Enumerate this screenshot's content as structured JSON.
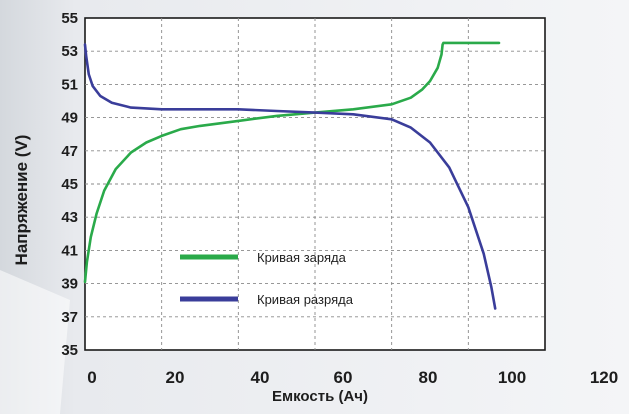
{
  "chart_data": {
    "type": "line",
    "title": "",
    "xlabel": "Емкость (Ач)",
    "ylabel": "Напряжение (V)",
    "xlim": [
      0,
      120
    ],
    "ylim": [
      35,
      55
    ],
    "x_ticks": [
      0,
      20,
      40,
      60,
      80,
      100,
      120
    ],
    "y_ticks": [
      35,
      37,
      39,
      41,
      43,
      45,
      47,
      49,
      51,
      53,
      55
    ],
    "grid": true,
    "legend_position": "center-left",
    "series": [
      {
        "name": "Кривая заряда",
        "color": "#2aaa4a",
        "x": [
          0,
          0.5,
          1.5,
          3,
          5,
          8,
          12,
          16,
          20,
          25,
          30,
          40,
          50,
          60,
          70,
          80,
          85,
          88,
          90,
          92,
          93,
          93.3,
          93.5,
          95,
          100,
          108
        ],
        "y": [
          39.1,
          40.3,
          41.8,
          43.2,
          44.6,
          45.9,
          46.9,
          47.5,
          47.9,
          48.3,
          48.5,
          48.8,
          49.1,
          49.3,
          49.5,
          49.8,
          50.2,
          50.7,
          51.2,
          52.0,
          52.8,
          53.4,
          53.5,
          53.5,
          53.5,
          53.5
        ]
      },
      {
        "name": "Кривая разряда",
        "color": "#3a3d9a",
        "x": [
          0,
          0.3,
          1,
          2,
          4,
          7,
          12,
          20,
          30,
          40,
          50,
          60,
          70,
          80,
          85,
          90,
          95,
          100,
          104,
          106,
          107
        ],
        "y": [
          53.4,
          52.7,
          51.6,
          50.9,
          50.3,
          49.9,
          49.6,
          49.5,
          49.5,
          49.5,
          49.4,
          49.3,
          49.2,
          48.9,
          48.4,
          47.5,
          46.0,
          43.6,
          40.8,
          38.8,
          37.5
        ]
      }
    ]
  }
}
